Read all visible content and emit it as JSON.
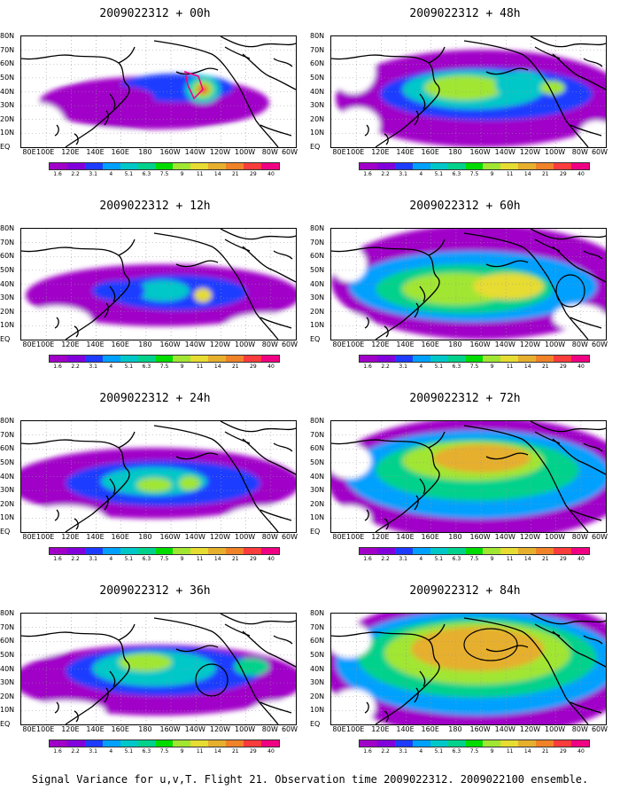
{
  "lat_labels": [
    "80N",
    "70N",
    "60N",
    "50N",
    "40N",
    "30N",
    "20N",
    "10N",
    "EQ"
  ],
  "lon_labels": [
    "80E",
    "100E",
    "120E",
    "140E",
    "160E",
    "180",
    "160W",
    "140W",
    "120W",
    "100W",
    "80W",
    "60W"
  ],
  "colorbar": {
    "labels": [
      "1.6",
      "2.2",
      "3.1",
      "4",
      "5.1",
      "6.3",
      "7.5",
      "9",
      "11",
      "14",
      "21",
      "29",
      "40"
    ],
    "colors": [
      "#a000c8",
      "#8200dc",
      "#1e3cff",
      "#00a0ff",
      "#00c8c8",
      "#00d28c",
      "#00dc00",
      "#a0e632",
      "#e6dc32",
      "#e6af2d",
      "#f08228",
      "#fa3c3c",
      "#f00082"
    ]
  },
  "panels": [
    {
      "title": "2009022312 + 00h",
      "lead_hours": 0,
      "circle": false
    },
    {
      "title": "2009022312 + 48h",
      "lead_hours": 48,
      "circle": false
    },
    {
      "title": "2009022312 + 12h",
      "lead_hours": 12,
      "circle": false
    },
    {
      "title": "2009022312 + 60h",
      "lead_hours": 60,
      "circle": true
    },
    {
      "title": "2009022312 + 24h",
      "lead_hours": 24,
      "circle": false
    },
    {
      "title": "2009022312 + 72h",
      "lead_hours": 72,
      "circle": false
    },
    {
      "title": "2009022312 + 36h",
      "lead_hours": 36,
      "circle": true
    },
    {
      "title": "2009022312 + 84h",
      "lead_hours": 84,
      "circle": true
    }
  ],
  "footer": "Signal Variance for u,v,T. Flight 21. Observation time 2009022312. 2009022100 ensemble."
}
